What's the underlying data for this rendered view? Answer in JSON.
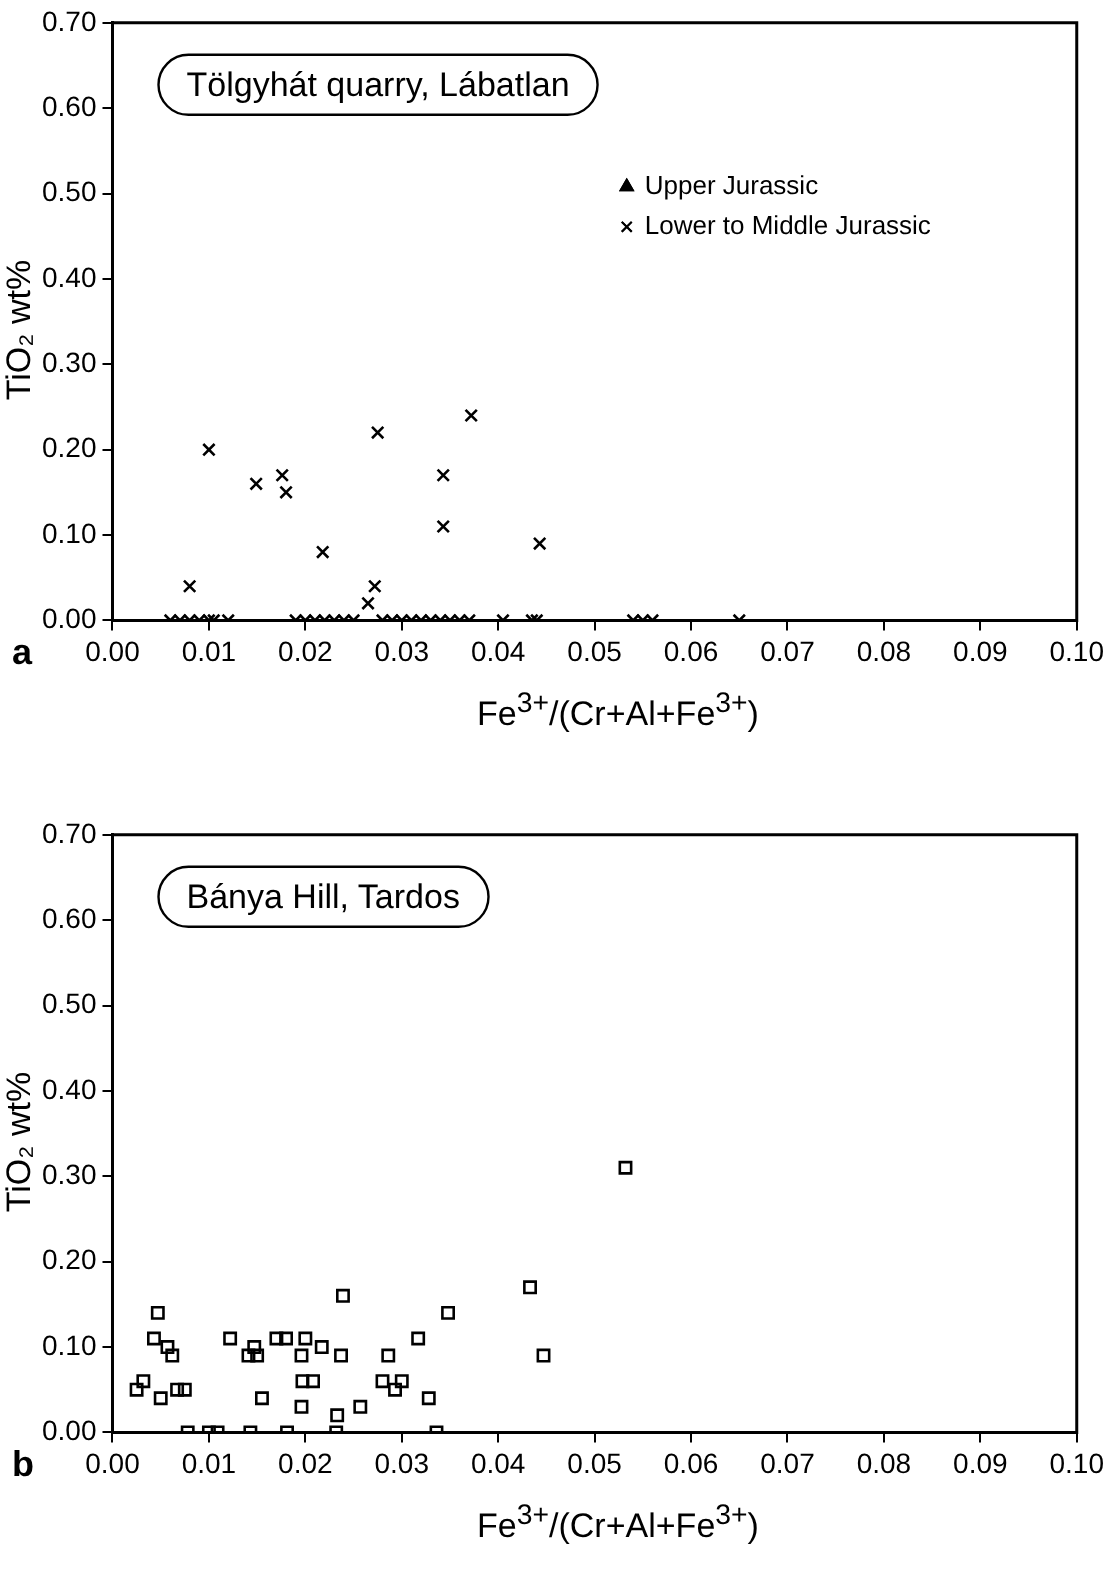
{
  "chart_data": [
    {
      "type": "scatter",
      "title": "Tölgyhát quarry, Lábatlan",
      "xlabel": "Fe$^{3+}$/(Cr+Al+Fe$^{3+}$)",
      "ylabel": "TiO₂ wt%",
      "annotations": [
        "a"
      ],
      "xlim": [
        0,
        0.1
      ],
      "ylim": [
        0,
        0.7
      ],
      "xticks": [
        {
          "value": 0,
          "label": "0.00"
        },
        {
          "value": 0.01,
          "label": "0.01"
        },
        {
          "value": 0.02,
          "label": "0.02"
        },
        {
          "value": 0.03,
          "label": "0.03"
        },
        {
          "value": 0.04,
          "label": "0.04"
        },
        {
          "value": 0.05,
          "label": "0.05"
        },
        {
          "value": 0.06,
          "label": "0.06"
        },
        {
          "value": 0.07,
          "label": "0.07"
        },
        {
          "value": 0.08,
          "label": "0.08"
        },
        {
          "value": 0.09,
          "label": "0.09"
        },
        {
          "value": 0.1,
          "label": "0.10"
        }
      ],
      "yticks": [
        {
          "value": 0,
          "label": "0.00"
        },
        {
          "value": 0.1,
          "label": "0.10"
        },
        {
          "value": 0.2,
          "label": "0.20"
        },
        {
          "value": 0.3,
          "label": "0.30"
        },
        {
          "value": 0.4,
          "label": "0.40"
        },
        {
          "value": 0.5,
          "label": "0.50"
        },
        {
          "value": 0.6,
          "label": "0.60"
        },
        {
          "value": 0.7,
          "label": "0.70"
        }
      ],
      "grid": false,
      "legend": "top right",
      "series": [
        {
          "name": "Upper Jurassic",
          "color": "#000000",
          "marker": "triangle"
        },
        {
          "name": "Lower to Middle Jurassic",
          "color": "#000000",
          "marker": "cross",
          "x": [
            0.008,
            0.01,
            0.0149,
            0.0176,
            0.018,
            0.0218,
            0.0275,
            0.0272,
            0.0265,
            0.0372,
            0.0343,
            0.0343,
            0.0443,
            0.006,
            0.007,
            0.008,
            0.009,
            0.01,
            0.0105,
            0.012,
            0.019,
            0.02,
            0.021,
            0.022,
            0.023,
            0.024,
            0.025,
            0.028,
            0.029,
            0.03,
            0.031,
            0.032,
            0.033,
            0.034,
            0.035,
            0.036,
            0.037,
            0.0405,
            0.0435,
            0.044,
            0.054,
            0.055,
            0.056,
            0.065
          ],
          "values": [
            0.04,
            0.2,
            0.16,
            0.17,
            0.15,
            0.08,
            0.22,
            0.04,
            0.02,
            0.24,
            0.17,
            0.11,
            0.09,
            0,
            0,
            0,
            0,
            0,
            0,
            0,
            0,
            0,
            0,
            0,
            0,
            0,
            0,
            0,
            0,
            0,
            0,
            0,
            0,
            0,
            0,
            0,
            0,
            0,
            0,
            0,
            0,
            0,
            0,
            0
          ]
        }
      ]
    },
    {
      "type": "scatter",
      "title": "Bánya Hill, Tardos",
      "xlabel": "Fe$^{3+}$/(Cr+Al+Fe$^{3+}$)",
      "ylabel": "TiO₂ wt%",
      "annotations": [
        "b"
      ],
      "xlim": [
        0,
        0.1
      ],
      "ylim": [
        0,
        0.7
      ],
      "xticks": [
        {
          "value": 0,
          "label": "0.00"
        },
        {
          "value": 0.01,
          "label": "0.01"
        },
        {
          "value": 0.02,
          "label": "0.02"
        },
        {
          "value": 0.03,
          "label": "0.03"
        },
        {
          "value": 0.04,
          "label": "0.04"
        },
        {
          "value": 0.05,
          "label": "0.05"
        },
        {
          "value": 0.06,
          "label": "0.06"
        },
        {
          "value": 0.07,
          "label": "0.07"
        },
        {
          "value": 0.08,
          "label": "0.08"
        },
        {
          "value": 0.09,
          "label": "0.09"
        },
        {
          "value": 0.1,
          "label": "0.10"
        }
      ],
      "yticks": [
        {
          "value": 0,
          "label": "0.00"
        },
        {
          "value": 0.1,
          "label": "0.10"
        },
        {
          "value": 0.2,
          "label": "0.20"
        },
        {
          "value": 0.3,
          "label": "0.30"
        },
        {
          "value": 0.4,
          "label": "0.40"
        },
        {
          "value": 0.5,
          "label": "0.50"
        },
        {
          "value": 0.6,
          "label": "0.60"
        },
        {
          "value": 0.7,
          "label": "0.70"
        }
      ],
      "grid": false,
      "marker": "square",
      "series": [
        {
          "color": "#000000",
          "x": [
            0.0025,
            0.0032,
            0.0047,
            0.0043,
            0.005,
            0.0057,
            0.0062,
            0.0067,
            0.0075,
            0.0078,
            0.01,
            0.0109,
            0.0122,
            0.0141,
            0.015,
            0.0147,
            0.0155,
            0.0143,
            0.017,
            0.018,
            0.0181,
            0.02,
            0.0196,
            0.0197,
            0.0208,
            0.0196,
            0.0217,
            0.0237,
            0.0239,
            0.0233,
            0.0232,
            0.0257,
            0.028,
            0.0286,
            0.0293,
            0.03,
            0.0317,
            0.0328,
            0.0336,
            0.0348,
            0.0433,
            0.0447,
            0.0532
          ],
          "values": [
            0.05,
            0.06,
            0.14,
            0.11,
            0.04,
            0.1,
            0.09,
            0.05,
            0.05,
            0,
            0,
            0,
            0.11,
            0.09,
            0.09,
            0.1,
            0.04,
            0,
            0.11,
            0.11,
            0,
            0.11,
            0.09,
            0.06,
            0.06,
            0.03,
            0.1,
            0.09,
            0.16,
            0.02,
            0,
            0.03,
            0.06,
            0.09,
            0.05,
            0.06,
            0.11,
            0.04,
            0,
            0.14,
            0.17,
            0.09,
            0.31
          ]
        }
      ]
    }
  ]
}
